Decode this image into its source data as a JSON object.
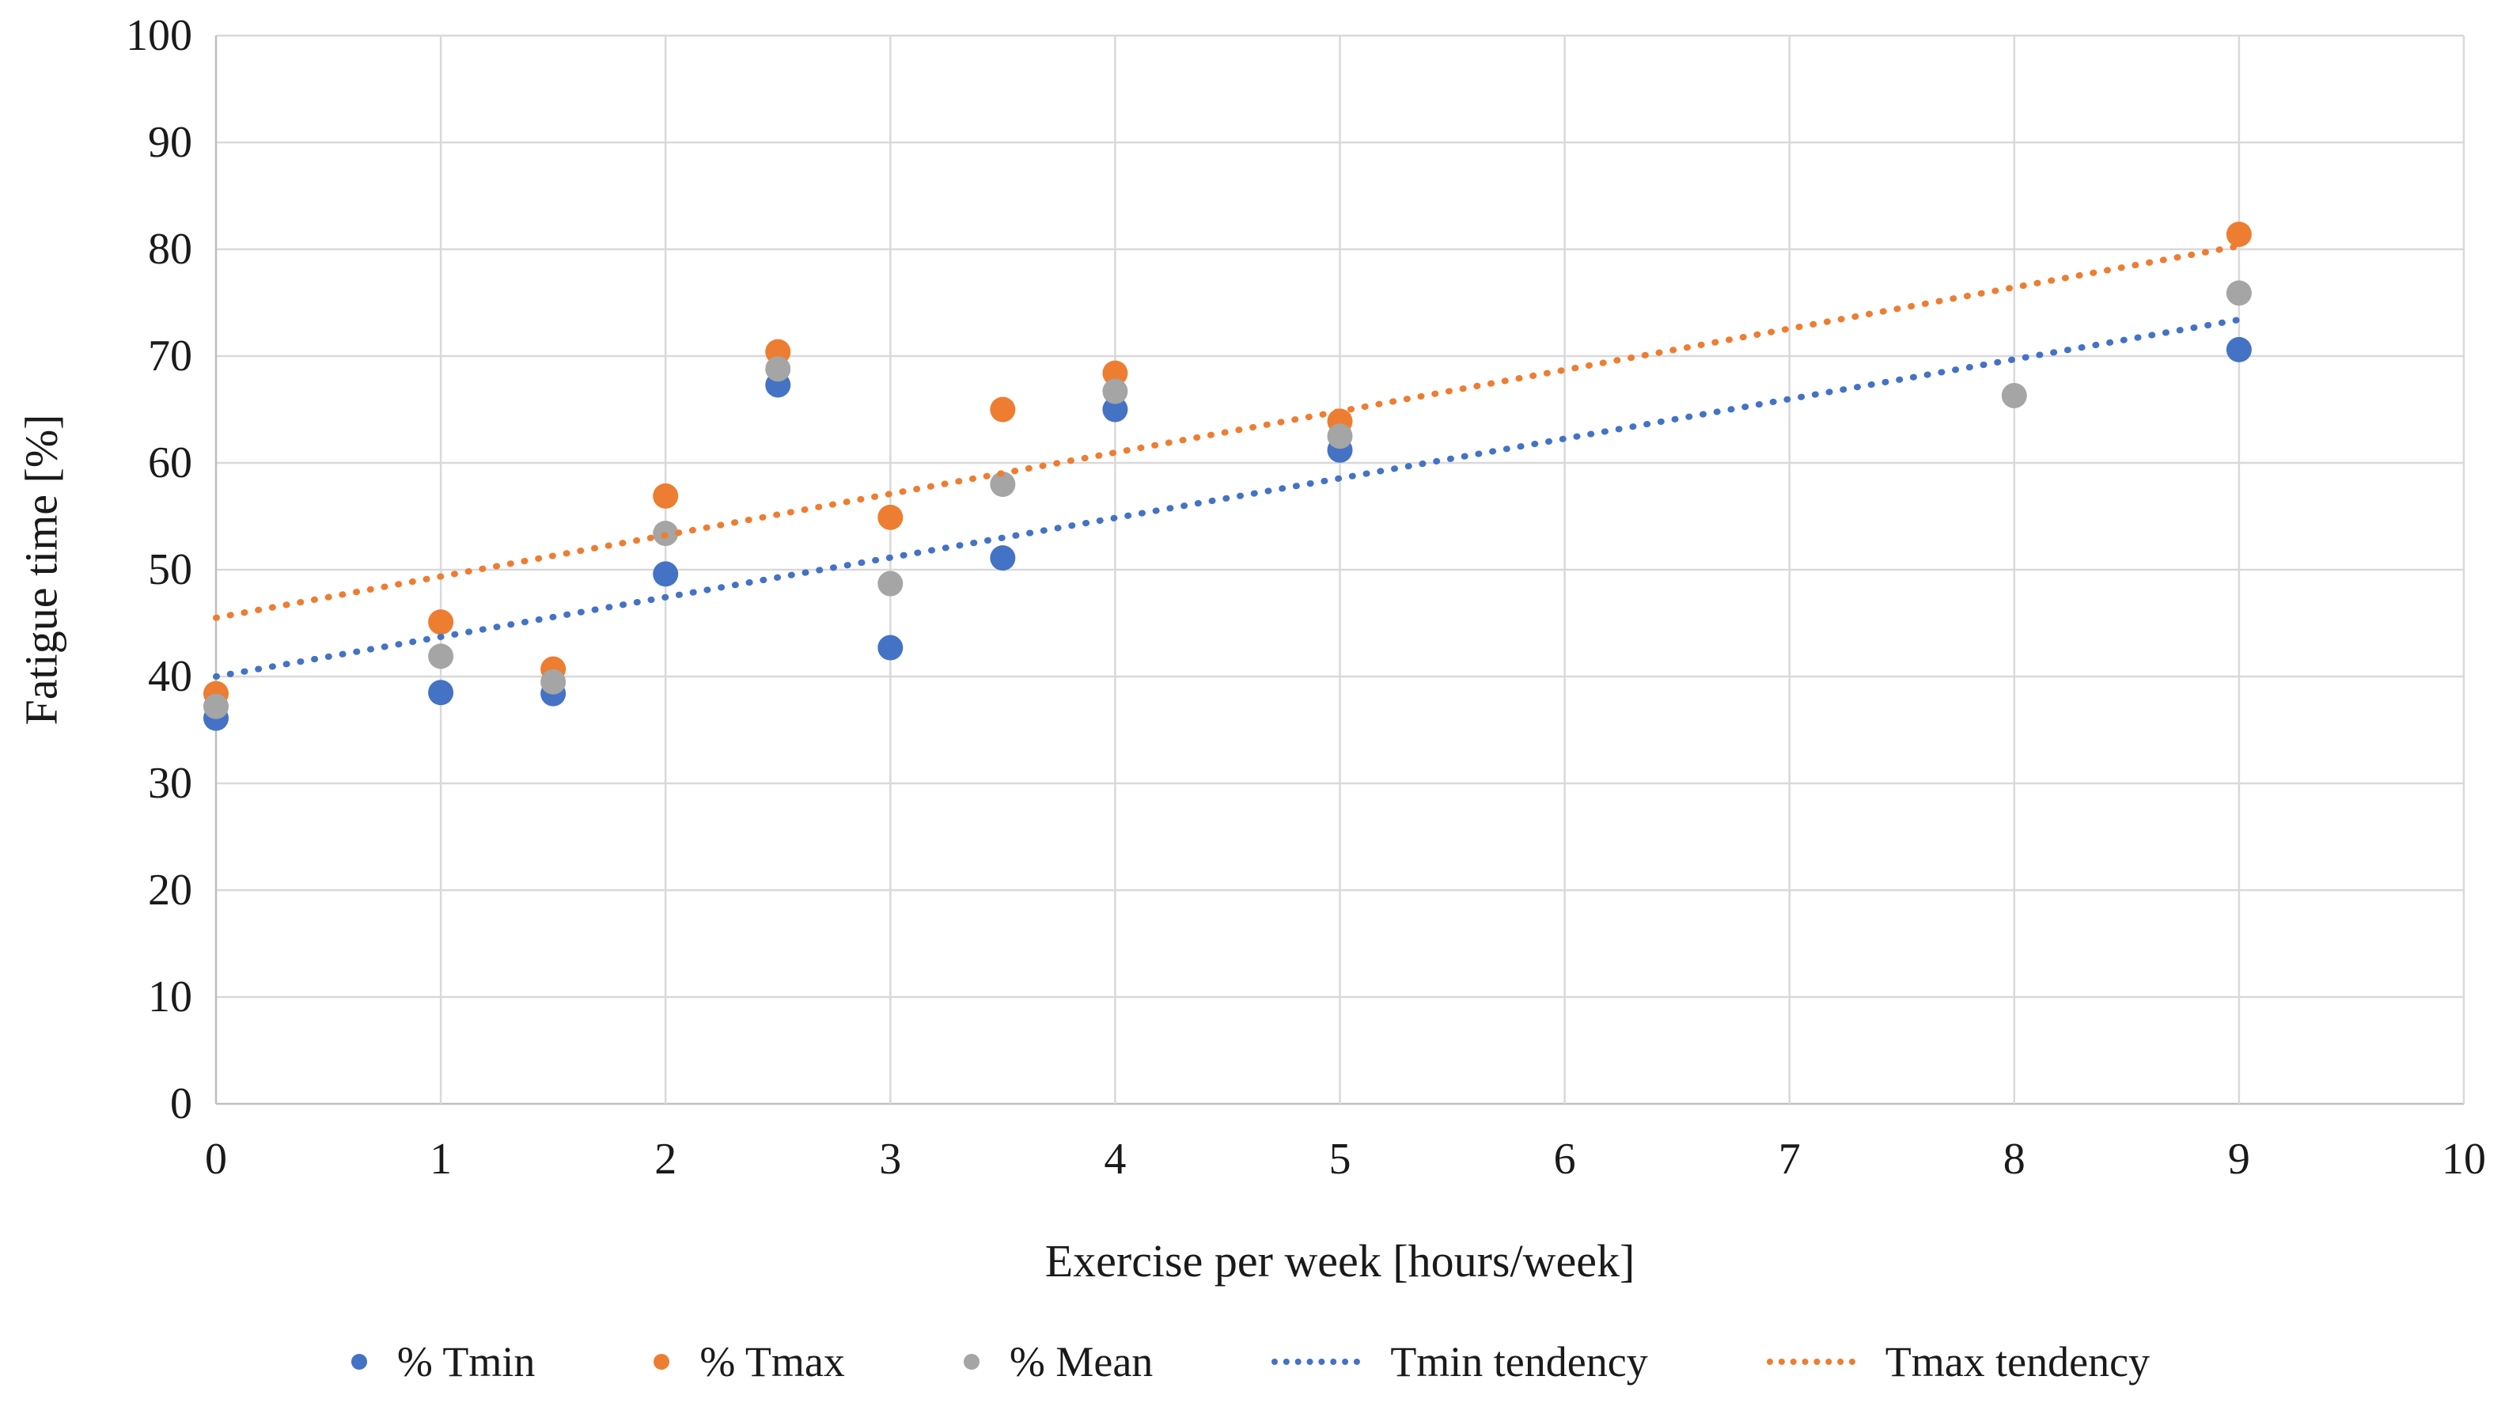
{
  "chart_data": {
    "type": "scatter",
    "title": "",
    "xlabel": "Exercise per week [hours/week]",
    "ylabel": "Fatigue time [%]",
    "xlim": [
      0,
      10
    ],
    "ylim": [
      0,
      100
    ],
    "x_ticks": [
      0,
      1,
      2,
      3,
      4,
      5,
      6,
      7,
      8,
      9,
      10
    ],
    "y_ticks": [
      0,
      10,
      20,
      30,
      40,
      50,
      60,
      70,
      80,
      90,
      100
    ],
    "grid": "both",
    "gridline_color": "#d9d9d9",
    "axis_line_color": "#bfbfbf",
    "legend_position": "bottom",
    "series": [
      {
        "name": "% Tmin",
        "kind": "scatter",
        "color": "#4472C4",
        "points": [
          [
            0,
            36.1
          ],
          [
            1,
            38.5
          ],
          [
            1.5,
            38.4
          ],
          [
            2,
            49.6
          ],
          [
            2.5,
            67.3
          ],
          [
            3,
            42.7
          ],
          [
            3.5,
            51.1
          ],
          [
            4,
            65.0
          ],
          [
            5,
            61.2
          ],
          [
            9,
            70.6
          ]
        ]
      },
      {
        "name": "% Tmax",
        "kind": "scatter",
        "color": "#ED7D31",
        "points": [
          [
            0,
            38.4
          ],
          [
            1,
            45.1
          ],
          [
            1.5,
            40.7
          ],
          [
            2,
            56.9
          ],
          [
            2.5,
            70.4
          ],
          [
            3,
            54.9
          ],
          [
            3.5,
            65.0
          ],
          [
            4,
            68.4
          ],
          [
            5,
            63.9
          ],
          [
            9,
            81.4
          ]
        ]
      },
      {
        "name": "% Mean",
        "kind": "scatter",
        "color": "#A5A5A5",
        "points": [
          [
            0,
            37.2
          ],
          [
            1,
            41.9
          ],
          [
            1.5,
            39.5
          ],
          [
            2,
            53.4
          ],
          [
            2.5,
            68.8
          ],
          [
            3,
            48.7
          ],
          [
            3.5,
            58.0
          ],
          [
            4,
            66.7
          ],
          [
            5,
            62.5
          ],
          [
            8,
            66.3
          ],
          [
            9,
            75.9
          ]
        ]
      },
      {
        "name": "Tmin tendency",
        "kind": "dotted-line",
        "color": "#4472C4",
        "points": [
          [
            0,
            40.0
          ],
          [
            9,
            73.4
          ]
        ]
      },
      {
        "name": "Tmax tendency",
        "kind": "dotted-line",
        "color": "#ED7D31",
        "points": [
          [
            0,
            45.5
          ],
          [
            9,
            80.3
          ]
        ]
      }
    ]
  }
}
